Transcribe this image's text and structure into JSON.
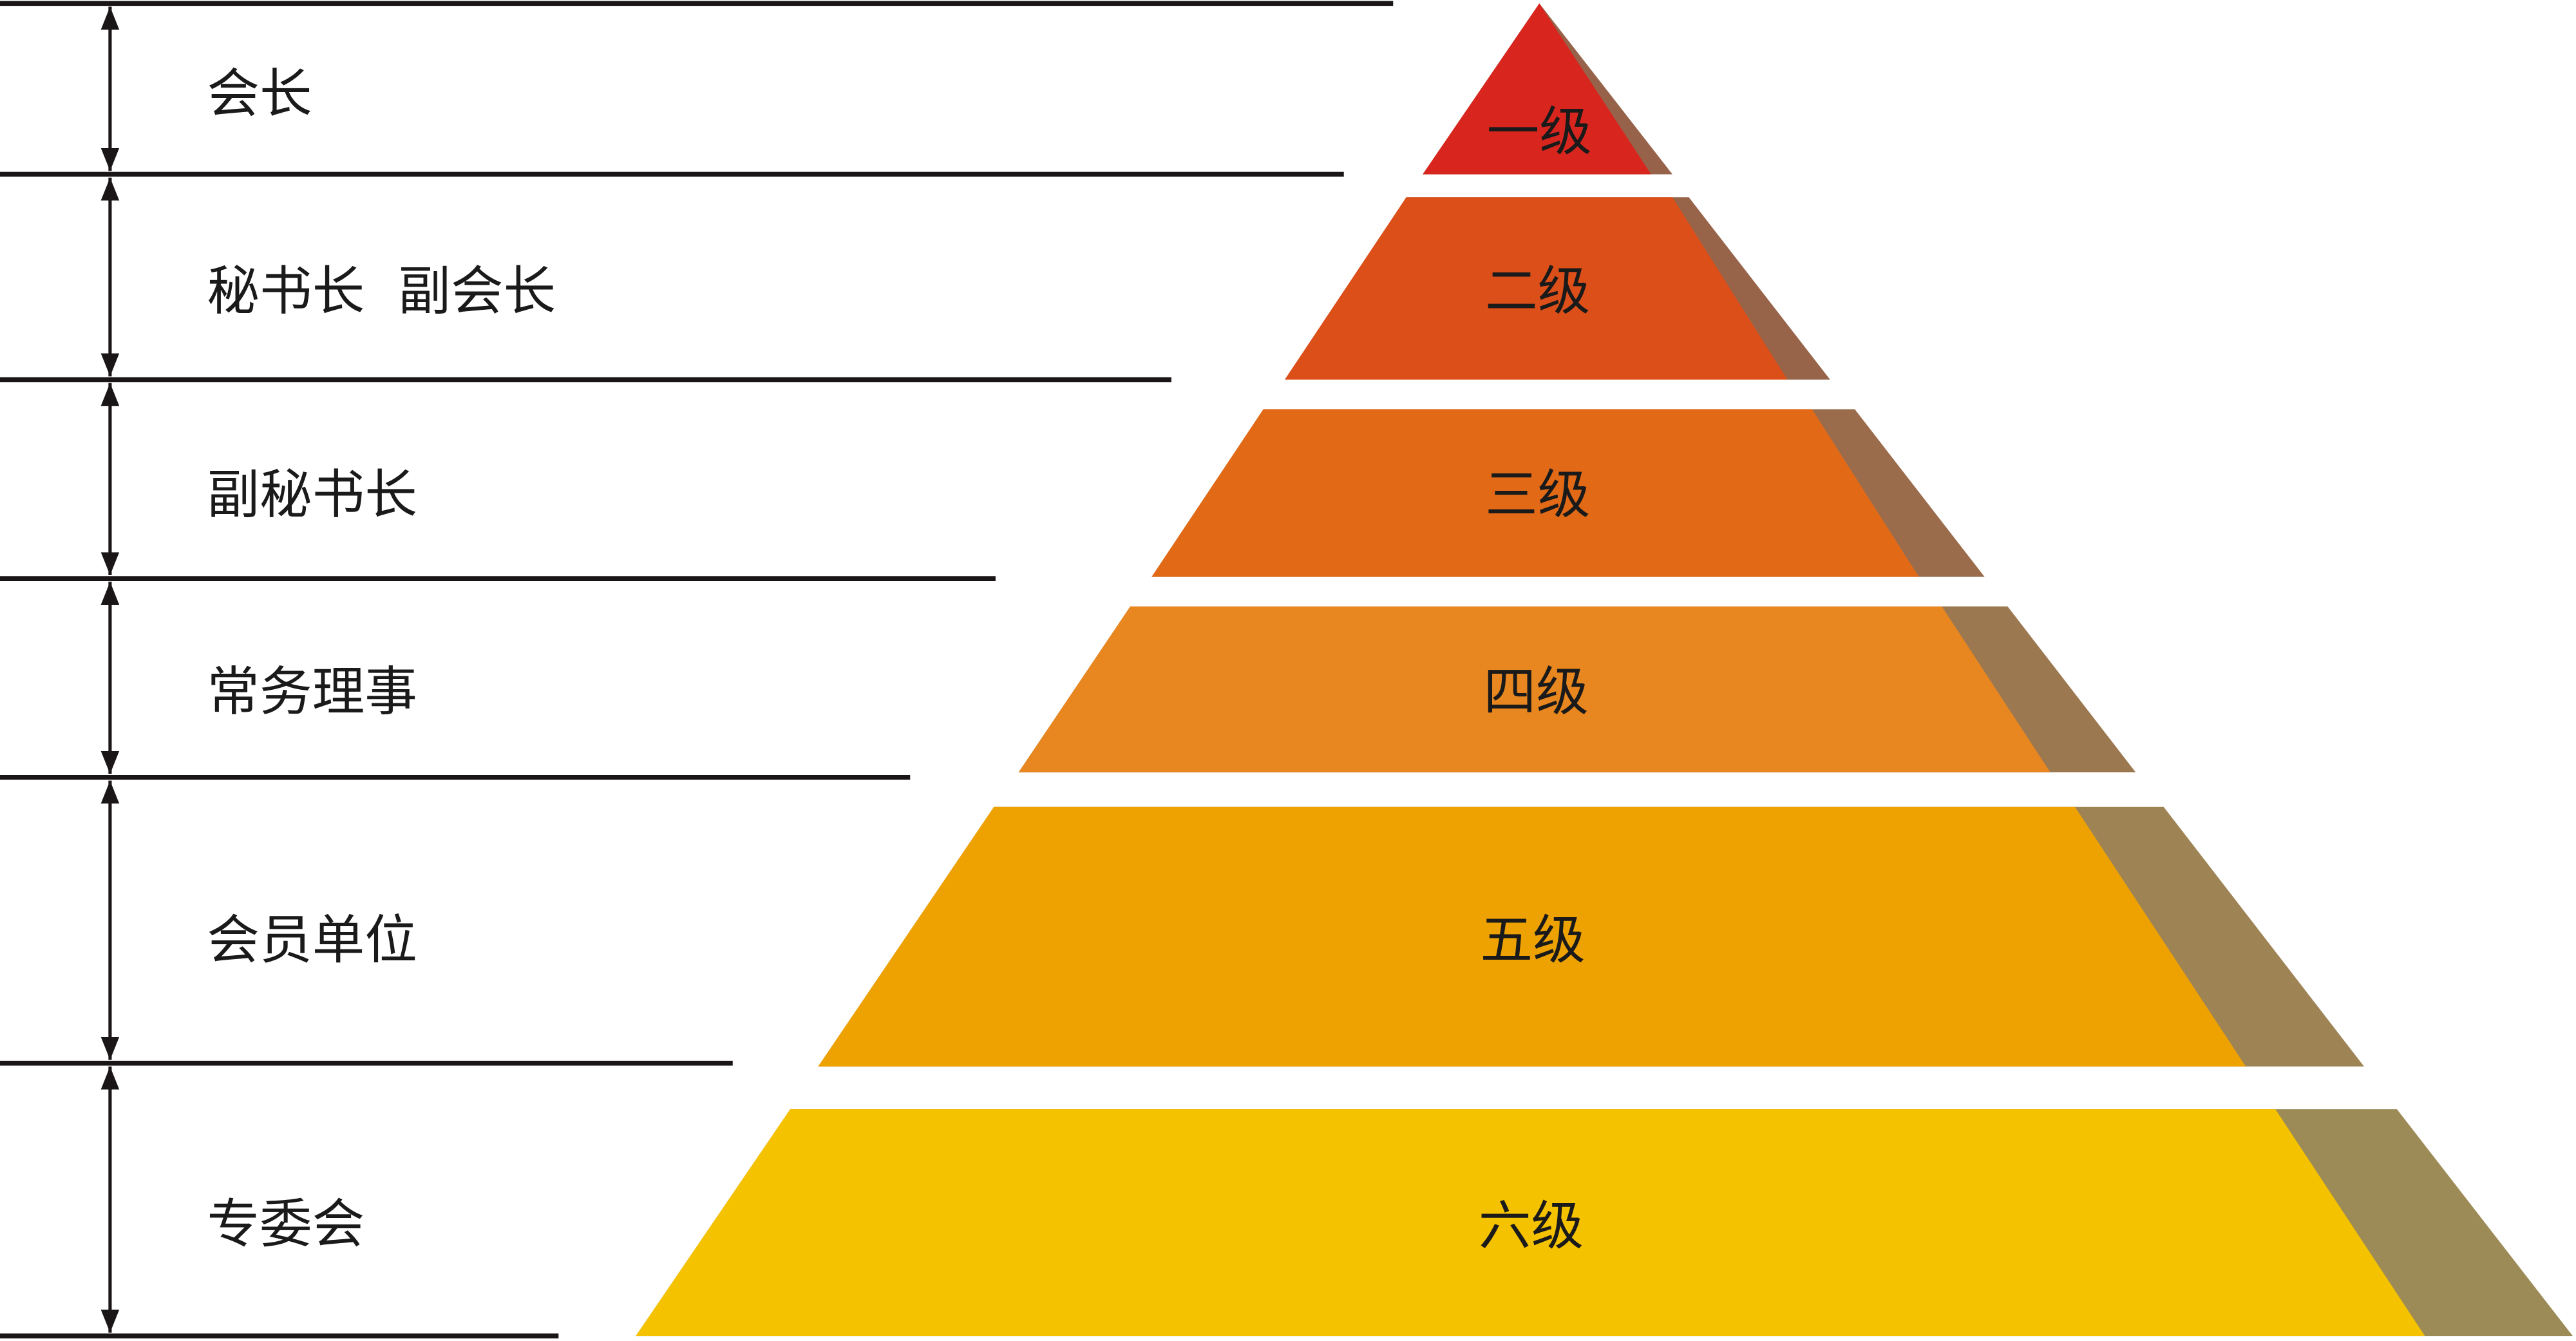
{
  "roles": [
    {
      "label": "会长"
    },
    {
      "label": "秘书长  副会长"
    },
    {
      "label": "副秘书长"
    },
    {
      "label": "常务理事"
    },
    {
      "label": "会员单位"
    },
    {
      "label": "专委会"
    }
  ],
  "levels": [
    {
      "label": "一级",
      "color": "#d8261e",
      "shadow": "#96634a"
    },
    {
      "label": "二级",
      "color": "#dc4f19",
      "shadow": "#97644a"
    },
    {
      "label": "三级",
      "color": "#e26a17",
      "shadow": "#9a6c4c"
    },
    {
      "label": "四级",
      "color": "#e8861f",
      "shadow": "#9c7850"
    },
    {
      "label": "五级",
      "color": "#eea202",
      "shadow": "#9e8355"
    },
    {
      "label": "六级",
      "color": "#f5c200",
      "shadow": "#9c8b56"
    }
  ],
  "line_color": "#1a1516"
}
